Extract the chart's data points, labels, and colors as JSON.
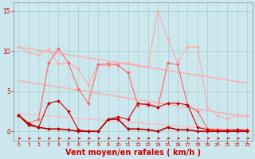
{
  "bg_color": "#cce8ee",
  "grid_color": "#aacccc",
  "xlabel": "Vent moyen/en rafales ( km/h )",
  "xlabel_color": "#cc0000",
  "xlabel_fontsize": 7,
  "xticks": [
    0,
    1,
    2,
    3,
    4,
    5,
    6,
    7,
    8,
    9,
    10,
    11,
    12,
    13,
    14,
    15,
    16,
    17,
    18,
    19,
    20,
    21,
    22,
    23
  ],
  "yticks": [
    0,
    5,
    10,
    15
  ],
  "ylim": [
    -1.2,
    16
  ],
  "xlim": [
    -0.5,
    23.5
  ],
  "lines": [
    {
      "x": [
        0,
        23
      ],
      "y": [
        10.5,
        6.0
      ],
      "color": "#ffaaaa",
      "lw": 1.0,
      "marker": null
    },
    {
      "x": [
        0,
        23
      ],
      "y": [
        6.3,
        1.8
      ],
      "color": "#ffaaaa",
      "lw": 1.0,
      "marker": null
    },
    {
      "x": [
        0,
        23
      ],
      "y": [
        2.2,
        0.0
      ],
      "color": "#ffbbbb",
      "lw": 1.0,
      "marker": null
    },
    {
      "x": [
        0,
        1,
        2,
        3,
        4,
        5,
        6,
        7,
        8,
        9,
        10,
        11,
        12,
        13,
        14,
        15,
        16,
        17,
        18,
        19,
        20,
        21,
        22,
        23
      ],
      "y": [
        10.5,
        9.8,
        9.5,
        10.2,
        8.4,
        8.5,
        7.8,
        5.8,
        8.3,
        8.1,
        8.5,
        8.5,
        8.2,
        8.0,
        15.0,
        11.5,
        8.5,
        10.5,
        10.5,
        3.0,
        2.0,
        1.5,
        2.0,
        2.0
      ],
      "color": "#ffaaaa",
      "lw": 0.8,
      "marker": "D",
      "markersize": 2.0
    },
    {
      "x": [
        0,
        1,
        2,
        3,
        4,
        5,
        6,
        7,
        8,
        9,
        10,
        11,
        12,
        13,
        14,
        15,
        16,
        17,
        18,
        19,
        20,
        21,
        22,
        23
      ],
      "y": [
        2.0,
        1.0,
        1.5,
        8.5,
        10.3,
        8.5,
        5.3,
        3.5,
        8.3,
        8.4,
        8.2,
        7.3,
        3.2,
        3.5,
        3.0,
        8.5,
        8.3,
        3.2,
        2.5,
        0.3,
        0.2,
        0.2,
        0.2,
        0.2
      ],
      "color": "#ff6666",
      "lw": 0.8,
      "marker": "D",
      "markersize": 2.0
    },
    {
      "x": [
        0,
        1,
        2,
        3,
        4,
        5,
        6,
        7,
        8,
        9,
        10,
        11,
        12,
        13,
        14,
        15,
        16,
        17,
        18,
        19,
        20,
        21,
        22,
        23
      ],
      "y": [
        2.0,
        1.0,
        0.5,
        3.5,
        3.8,
        2.5,
        0.2,
        0.0,
        0.0,
        1.5,
        1.8,
        1.5,
        3.5,
        3.3,
        3.0,
        3.5,
        3.5,
        3.3,
        0.5,
        0.2,
        0.1,
        0.1,
        0.2,
        0.1
      ],
      "color": "#cc0000",
      "lw": 0.8,
      "marker": "D",
      "markersize": 2.0
    },
    {
      "x": [
        0,
        1,
        2,
        3,
        4,
        5,
        6,
        7,
        8,
        9,
        10,
        11,
        12,
        13,
        14,
        15,
        16,
        17,
        18,
        19,
        20,
        21,
        22,
        23
      ],
      "y": [
        2.0,
        0.8,
        0.5,
        0.3,
        0.3,
        0.2,
        0.0,
        0.0,
        0.0,
        1.5,
        1.5,
        0.3,
        0.3,
        0.2,
        0.0,
        0.5,
        0.2,
        0.2,
        0.0,
        0.0,
        0.0,
        0.0,
        0.0,
        0.0
      ],
      "color": "#bb0000",
      "lw": 1.2,
      "marker": "D",
      "markersize": 2.0
    }
  ]
}
